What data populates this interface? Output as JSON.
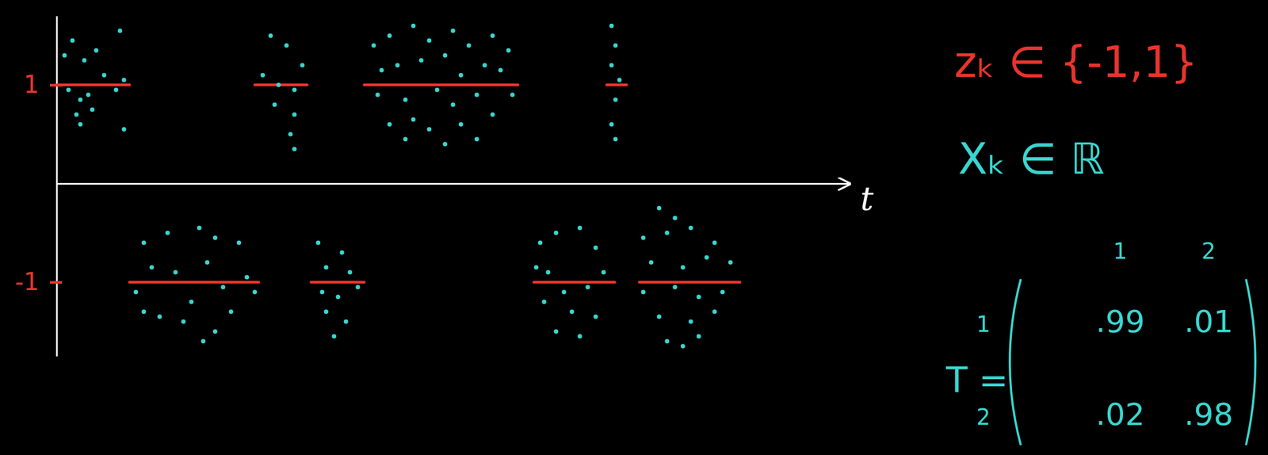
{
  "chart_data": {
    "type": "scatter",
    "x_label": "t",
    "xlim": [
      0,
      100
    ],
    "xticks": [],
    "ylim": [
      -1.75,
      1.7
    ],
    "yticks": [
      -1,
      1
    ],
    "tick_labels": "y",
    "grid": false,
    "series": [
      {
        "type": "line",
        "color": "#e8342c",
        "line_style": "solid",
        "x": [
          0,
          9.2,
          null,
          9.2,
          25.5,
          null,
          25,
          31.6,
          null,
          32.1,
          38.8,
          null,
          38.8,
          58.2,
          null,
          60.2,
          70.4,
          null,
          69.4,
          71.9,
          null,
          73.5,
          86.2
        ],
        "values": [
          1,
          1,
          null,
          -1,
          -1,
          null,
          1,
          1,
          null,
          -1,
          -1,
          null,
          1,
          1,
          null,
          -1,
          -1,
          null,
          1,
          1,
          null,
          -1,
          -1
        ]
      },
      {
        "type": "scatter",
        "color": "#38d6cf",
        "marker": "circle",
        "x": [
          1,
          2,
          3.5,
          5,
          8,
          1.5,
          3,
          4,
          6,
          7.5,
          8.5,
          2.5,
          4.5,
          8.5,
          3,
          11,
          14,
          18,
          20,
          23,
          10,
          12,
          15,
          17,
          19,
          21,
          24,
          13,
          16,
          20,
          22,
          18.5,
          11,
          25,
          27,
          29,
          26,
          28,
          30,
          27.5,
          30,
          29.5,
          30,
          31,
          33,
          36,
          34,
          37,
          33.5,
          35.5,
          38,
          34,
          36.5,
          35,
          40,
          42,
          45,
          47,
          50,
          52,
          55,
          57,
          41,
          43,
          46,
          49,
          51,
          54,
          56,
          40.5,
          44,
          48,
          50,
          53,
          57.5,
          42,
          45,
          47,
          51,
          55,
          44,
          49,
          53,
          70,
          70.5,
          70,
          71,
          70.5,
          70,
          70.5,
          61,
          63,
          66,
          68,
          60.5,
          62,
          64,
          67,
          69,
          61.5,
          65,
          68,
          63,
          66,
          76,
          78,
          74,
          77,
          80,
          83,
          75,
          79,
          82,
          85,
          74,
          78,
          81,
          84,
          76,
          80,
          83,
          77,
          79,
          81
        ],
        "values": [
          1.3,
          1.45,
          1.25,
          1.35,
          1.55,
          0.95,
          0.85,
          0.9,
          1.1,
          0.95,
          1.05,
          0.7,
          0.75,
          0.55,
          0.6,
          -0.6,
          -0.5,
          -0.45,
          -0.55,
          -0.6,
          -1.1,
          -0.85,
          -0.9,
          -1.2,
          -0.8,
          -1.05,
          -0.95,
          -1.35,
          -1.4,
          -1.5,
          -1.3,
          -1.6,
          -1.3,
          -1.1,
          1.5,
          1.4,
          1.1,
          1.0,
          0.95,
          0.8,
          0.7,
          0.5,
          0.35,
          1.2,
          -0.6,
          -0.7,
          -0.85,
          -0.9,
          -1.1,
          -1.15,
          -1.05,
          -1.3,
          -1.4,
          -1.55,
          1.4,
          1.5,
          1.6,
          1.45,
          1.55,
          1.4,
          1.5,
          1.35,
          1.15,
          1.2,
          1.25,
          1.3,
          1.1,
          1.2,
          1.15,
          0.9,
          0.85,
          0.95,
          0.8,
          0.9,
          0.9,
          0.6,
          0.65,
          0.55,
          0.6,
          0.7,
          0.45,
          0.4,
          0.45,
          1.6,
          1.4,
          1.2,
          1.05,
          0.85,
          0.6,
          0.45,
          -0.6,
          -0.5,
          -0.45,
          -0.65,
          -0.85,
          -0.9,
          -1.1,
          -1.05,
          -0.9,
          -1.2,
          -1.3,
          -1.35,
          -1.5,
          -1.55,
          -0.25,
          -0.35,
          -0.55,
          -0.5,
          -0.45,
          -0.6,
          -0.8,
          -0.85,
          -0.75,
          -0.8,
          -1.1,
          -1.05,
          -1.15,
          -1.1,
          -1.35,
          -1.4,
          -1.3,
          -1.6,
          -1.65,
          -1.55
        ]
      }
    ],
    "annotations": [
      {
        "text": "zₖ ∈ {-1,1}",
        "color": "#e8342c"
      },
      {
        "text": "Xₖ ∈ ℝ",
        "color": "#38d6cf"
      }
    ],
    "matrix": {
      "label": "T =",
      "color": "#38d6cf",
      "row_labels": [
        "1",
        "2"
      ],
      "col_labels": [
        "1",
        "2"
      ],
      "values": [
        [
          0.99,
          0.01
        ],
        [
          0.02,
          0.98
        ]
      ],
      "value_labels": [
        [
          ".99",
          ".01"
        ],
        [
          ".02",
          ".98"
        ]
      ]
    }
  }
}
